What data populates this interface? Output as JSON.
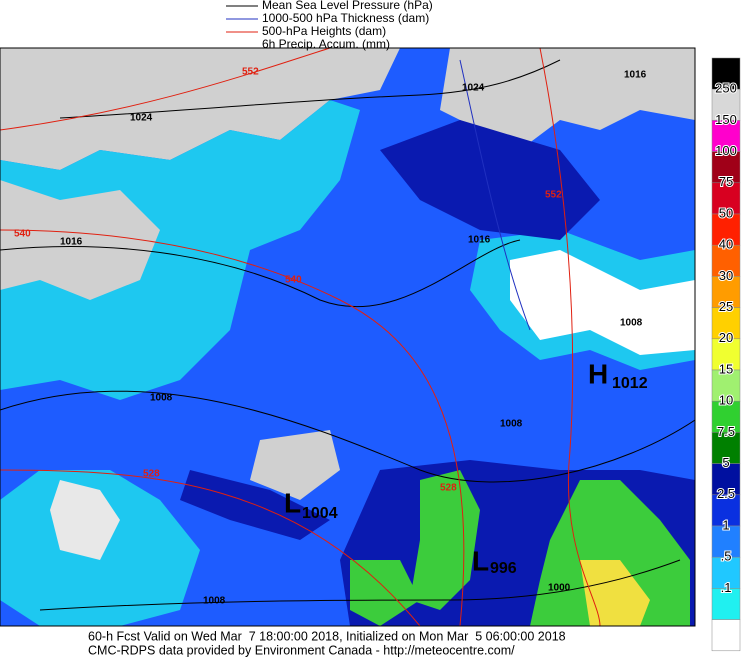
{
  "legend": [
    "Mean Sea Level Pressure (hPa)",
    "1000-500 hPa Thickness (dam)",
    "500-hPa Heights (dam)",
    "6h Precip. Accum. (mm)"
  ],
  "colorbar_labels": [
    "250",
    "150",
    "100",
    "75",
    "50",
    "40",
    "30",
    "25",
    "20",
    "15",
    "10",
    "7.5",
    "5",
    "2.5",
    "1",
    ".5",
    ".1"
  ],
  "isobar_labels": [
    "1024",
    "1016",
    "1024",
    "1016",
    "1016",
    "1008",
    "1008",
    "1008",
    "1008",
    "1000"
  ],
  "height_labels": [
    "552",
    "540",
    "540",
    "552",
    "528",
    "528"
  ],
  "pressure_centers": [
    {
      "letter": "H",
      "value": "1012"
    },
    {
      "letter": "L",
      "value": "1004"
    },
    {
      "letter": "L",
      "value": "996"
    }
  ],
  "footer": [
    "60-h Fcst Valid on Wed Mar  7 18:00:00 2018, Initialized on Mon Mar  5 06:00:00 2018",
    "CMC-RDPS data provided by Environment Canada - http://meteocentre.com/"
  ]
}
